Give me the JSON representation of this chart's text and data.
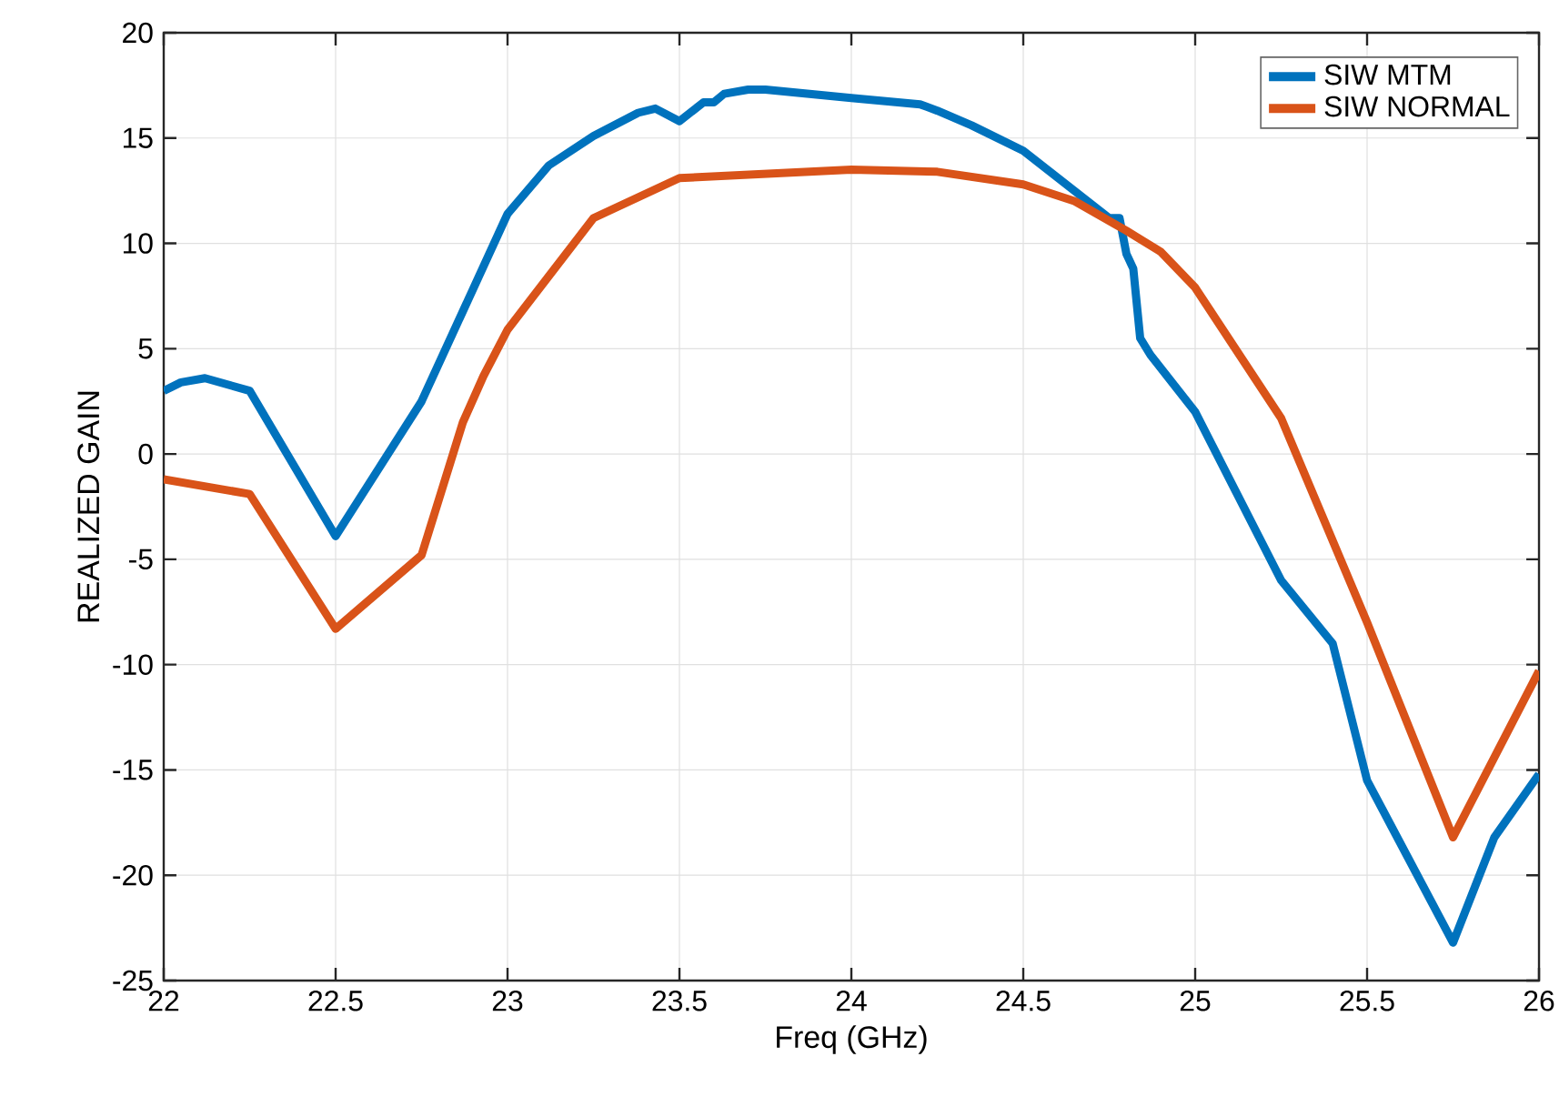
{
  "chart_data": {
    "type": "line",
    "xlabel": "Freq (GHz)",
    "ylabel": "REALIZED GAIN",
    "xlim": [
      22,
      26
    ],
    "xticks": [
      22,
      22.5,
      23,
      23.5,
      24,
      24.5,
      25,
      25.5,
      26
    ],
    "ylim": [
      -25,
      20
    ],
    "yticks": [
      -25,
      -20,
      -15,
      -10,
      -5,
      0,
      5,
      10,
      15,
      20
    ],
    "grid": true,
    "legend": "top right",
    "line_style": "solid",
    "marker": "none",
    "series": [
      {
        "name": "SIW MTM",
        "color": "#0072bd",
        "x": [
          22,
          22.05,
          22.12,
          22.25,
          22.5,
          22.75,
          23,
          23.12,
          23.25,
          23.38,
          23.43,
          23.5,
          23.57,
          23.6,
          23.63,
          23.7,
          23.75,
          24,
          24.2,
          24.25,
          24.35,
          24.5,
          24.75,
          24.78,
          24.8,
          24.82,
          24.84,
          24.87,
          25,
          25.25,
          25.4,
          25.5,
          25.75,
          25.87,
          26
        ],
        "values": [
          3.0,
          3.4,
          3.6,
          3.0,
          -3.9,
          2.5,
          11.4,
          13.7,
          15.1,
          16.2,
          16.4,
          15.8,
          16.7,
          16.7,
          17.1,
          17.3,
          17.3,
          16.9,
          16.6,
          16.3,
          15.6,
          14.4,
          11.2,
          11.2,
          9.5,
          8.8,
          5.5,
          4.7,
          2.0,
          -6.0,
          -9.0,
          -15.5,
          -23.2,
          -18.2,
          -15.2
        ]
      },
      {
        "name": "SIW NORMAL",
        "color": "#d95319",
        "x": [
          22,
          22.25,
          22.5,
          22.75,
          22.87,
          22.93,
          23,
          23.25,
          23.5,
          24,
          24.25,
          24.5,
          24.65,
          24.8,
          24.9,
          25,
          25.25,
          25.5,
          25.75,
          26
        ],
        "values": [
          -1.2,
          -1.9,
          -8.3,
          -4.8,
          1.5,
          3.7,
          5.9,
          11.2,
          13.1,
          13.5,
          13.4,
          12.8,
          12.0,
          10.6,
          9.6,
          7.9,
          1.7,
          -8.0,
          -18.2,
          -10.3
        ]
      }
    ]
  }
}
